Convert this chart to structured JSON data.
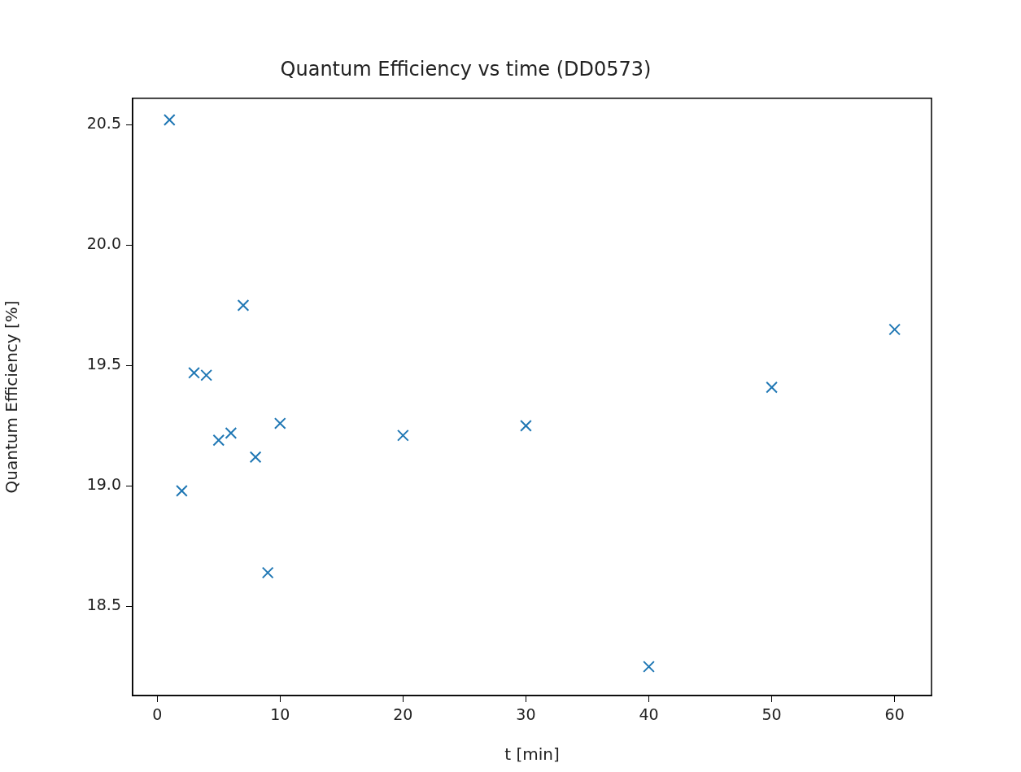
{
  "chart_data": {
    "type": "scatter",
    "title": "Quantum Efficiency vs time (DD0573)",
    "xlabel": "t [min]",
    "ylabel": "Quantum Efficiency [%]",
    "x": [
      1,
      2,
      3,
      4,
      5,
      6,
      7,
      8,
      9,
      10,
      20,
      30,
      40,
      50,
      60
    ],
    "series": [
      {
        "color": "#1f77b4",
        "values": [
          20.52,
          18.98,
          19.47,
          19.46,
          19.19,
          19.22,
          19.75,
          19.12,
          18.64,
          19.26,
          19.21,
          19.25,
          18.25,
          19.41,
          19.65
        ]
      }
    ],
    "xlim": [
      -2,
      63
    ],
    "xticks": [
      0,
      10,
      20,
      30,
      40,
      50,
      60
    ],
    "ylim": [
      18.13,
      20.61
    ],
    "yticks": [
      {
        "value": 18.5,
        "label": "18.5"
      },
      {
        "value": 19,
        "label": "19.0"
      },
      {
        "value": 19.5,
        "label": "19.5"
      },
      {
        "value": 20,
        "label": "20.0"
      },
      {
        "value": 20.5,
        "label": "20.5"
      }
    ],
    "grid": false,
    "legend": false,
    "marker": "cross"
  }
}
